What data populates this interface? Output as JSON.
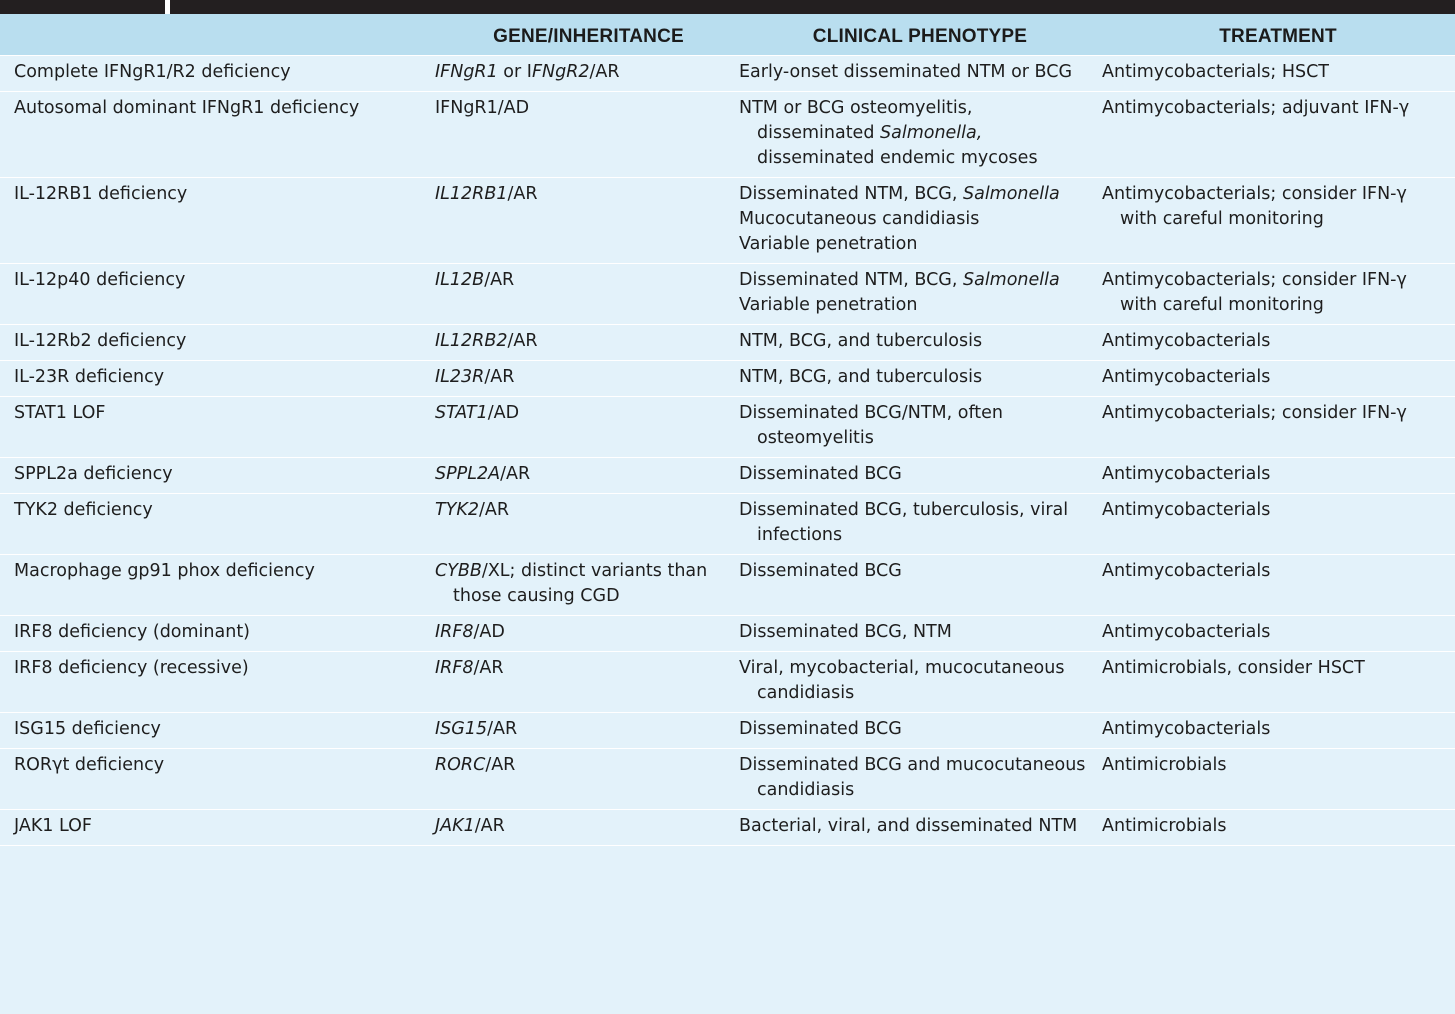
{
  "headers": {
    "condition": "",
    "gene": "GENE/INHERITANCE",
    "phenotype": "CLINICAL PHENOTYPE",
    "treatment": "TREATMENT"
  },
  "rows": [
    {
      "condition": "Complete IFNgR1/R2 deficiency",
      "gene": [
        {
          "t": "IFNgR1",
          "i": true
        },
        {
          "t": " or I",
          "i": false
        },
        {
          "t": "FNgR2",
          "i": true
        },
        {
          "t": "/AR",
          "i": false
        }
      ],
      "phenotype": [
        "Early-onset disseminated NTM or BCG"
      ],
      "treatment": "Antimycobacterials; HSCT"
    },
    {
      "condition": "Autosomal dominant IFNgR1 deficiency",
      "gene": [
        {
          "t": "IFNgR1/AD",
          "i": false
        }
      ],
      "phenotype": [
        [
          {
            "t": "NTM or BCG osteomyelitis, disseminated ",
            "i": false
          },
          {
            "t": "Salmonella,",
            "i": true
          },
          {
            "t": " disseminated endemic mycoses",
            "i": false
          }
        ]
      ],
      "treatment": "Antimycobacterials; adjuvant IFN-γ"
    },
    {
      "condition": "IL-12RB1 deficiency",
      "gene": [
        {
          "t": "IL12RB1",
          "i": true
        },
        {
          "t": "/AR",
          "i": false
        }
      ],
      "phenotype": [
        [
          {
            "t": "Disseminated NTM, BCG, ",
            "i": false
          },
          {
            "t": "Salmonella",
            "i": true
          }
        ],
        "Mucocutaneous candidiasis",
        "Variable penetration"
      ],
      "treatment": "Antimycobacterials; consider IFN-γ with careful monitoring"
    },
    {
      "condition": "IL-12p40 deficiency",
      "gene": [
        {
          "t": "IL12B",
          "i": true
        },
        {
          "t": "/AR",
          "i": false
        }
      ],
      "phenotype": [
        [
          {
            "t": "Disseminated NTM, BCG, ",
            "i": false
          },
          {
            "t": "Salmonella",
            "i": true
          }
        ],
        "Variable penetration"
      ],
      "treatment": "Antimycobacterials; consider IFN-γ with careful monitoring"
    },
    {
      "condition": "IL-12Rb2 deficiency",
      "gene": [
        {
          "t": "IL12RB2",
          "i": true
        },
        {
          "t": "/AR",
          "i": false
        }
      ],
      "phenotype": [
        "NTM, BCG, and tuberculosis"
      ],
      "treatment": "Antimycobacterials"
    },
    {
      "condition": "IL-23R deficiency",
      "gene": [
        {
          "t": "IL23R",
          "i": true
        },
        {
          "t": "/AR",
          "i": false
        }
      ],
      "phenotype": [
        "NTM, BCG, and tuberculosis"
      ],
      "treatment": "Antimycobacterials"
    },
    {
      "condition": "STAT1 LOF",
      "gene": [
        {
          "t": "STAT1",
          "i": true
        },
        {
          "t": "/AD",
          "i": false
        }
      ],
      "phenotype": [
        "Disseminated BCG/NTM, often osteomyelitis"
      ],
      "treatment": "Antimycobacterials; consider IFN-γ"
    },
    {
      "condition": "SPPL2a deficiency",
      "gene": [
        {
          "t": "SPPL2A",
          "i": true
        },
        {
          "t": "/AR",
          "i": false
        }
      ],
      "phenotype": [
        "Disseminated BCG"
      ],
      "treatment": "Antimycobacterials"
    },
    {
      "condition": "TYK2 deficiency",
      "gene": [
        {
          "t": "TYK2",
          "i": true
        },
        {
          "t": "/AR",
          "i": false
        }
      ],
      "phenotype": [
        "Disseminated BCG, tuberculosis, viral infections"
      ],
      "treatment": "Antimycobacterials"
    },
    {
      "condition": "Macrophage gp91 phox deficiency",
      "gene": [
        {
          "t": "CYBB",
          "i": true
        },
        {
          "t": "/XL; distinct variants than those causing CGD",
          "i": false
        }
      ],
      "phenotype": [
        "Disseminated BCG"
      ],
      "treatment": "Antimycobacterials"
    },
    {
      "condition": "IRF8 deficiency (dominant)",
      "gene": [
        {
          "t": "IRF8",
          "i": true
        },
        {
          "t": "/AD",
          "i": false
        }
      ],
      "phenotype": [
        "Disseminated BCG, NTM"
      ],
      "treatment": "Antimycobacterials"
    },
    {
      "condition": "IRF8 deficiency (recessive)",
      "gene": [
        {
          "t": "IRF8",
          "i": true
        },
        {
          "t": "/AR",
          "i": false
        }
      ],
      "phenotype": [
        "Viral, mycobacterial, mucocutaneous candidiasis"
      ],
      "treatment": "Antimicrobials, consider HSCT"
    },
    {
      "condition": "ISG15 deficiency",
      "gene": [
        {
          "t": "ISG15",
          "i": true
        },
        {
          "t": "/AR",
          "i": false
        }
      ],
      "phenotype": [
        "Disseminated BCG"
      ],
      "treatment": "Antimycobacterials"
    },
    {
      "condition": "RORγt deficiency",
      "gene": [
        {
          "t": "RORC",
          "i": true
        },
        {
          "t": "/AR",
          "i": false
        }
      ],
      "phenotype": [
        "Disseminated BCG and mucocutaneous candidiasis"
      ],
      "treatment": "Antimicrobials"
    },
    {
      "condition": "JAK1 LOF",
      "gene": [
        {
          "t": "JAK1",
          "i": true
        },
        {
          "t": "/AR",
          "i": false
        }
      ],
      "phenotype": [
        "Bacterial, viral, and disseminated NTM"
      ],
      "treatment": "Antimicrobials"
    }
  ]
}
